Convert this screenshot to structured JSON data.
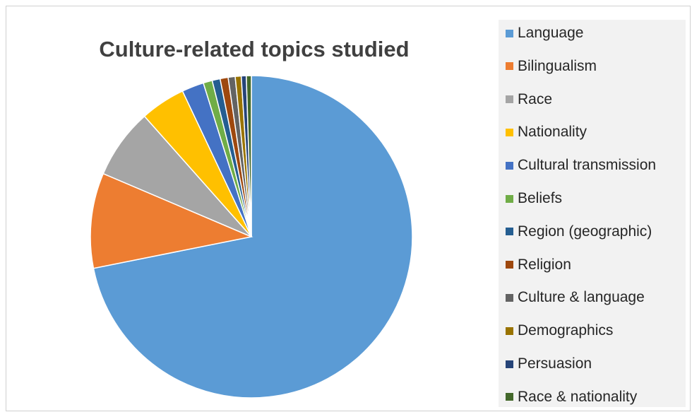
{
  "chart_data": {
    "type": "pie",
    "title": "Culture-related topics studied",
    "legend_position": "right",
    "slices": [
      {
        "label": "Language",
        "value": 71.5,
        "color": "#5b9bd5"
      },
      {
        "label": "Bilingualism",
        "value": 9.5,
        "color": "#ed7d31"
      },
      {
        "label": "Race",
        "value": 7.0,
        "color": "#a5a5a5"
      },
      {
        "label": "Nationality",
        "value": 4.5,
        "color": "#ffc000"
      },
      {
        "label": "Cultural transmission",
        "value": 2.2,
        "color": "#4472c4"
      },
      {
        "label": "Beliefs",
        "value": 0.9,
        "color": "#70ad47"
      },
      {
        "label": "Region (geographic)",
        "value": 0.8,
        "color": "#255e91"
      },
      {
        "label": "Religion",
        "value": 0.8,
        "color": "#9e480e"
      },
      {
        "label": "Culture & language",
        "value": 0.7,
        "color": "#636363"
      },
      {
        "label": "Demographics",
        "value": 0.6,
        "color": "#997300"
      },
      {
        "label": "Persuasion",
        "value": 0.5,
        "color": "#264478"
      },
      {
        "label": "Race & nationality",
        "value": 0.5,
        "color": "#43682b"
      }
    ]
  }
}
